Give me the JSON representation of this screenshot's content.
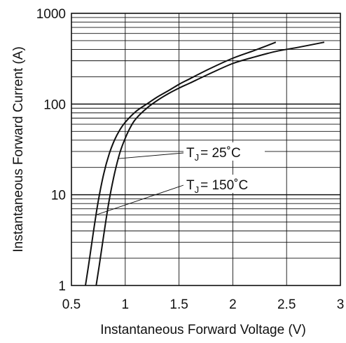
{
  "chart_data": {
    "type": "line",
    "title": "",
    "xlabel": "Instantaneous Forward Voltage (V)",
    "ylabel": "Instantaneous Forward Current (A)",
    "xscale": "linear",
    "yscale": "log",
    "xlim": [
      0.5,
      3
    ],
    "ylim": [
      1,
      1000
    ],
    "xticks": [
      "0.5",
      "1",
      "1.5",
      "2",
      "2.5",
      "3"
    ],
    "yticks": [
      "1",
      "10",
      "100",
      "1000"
    ],
    "grid": true,
    "legend": "annotations",
    "series": [
      {
        "name": "TJ = 25°C",
        "label_main": "T",
        "label_sub": "J",
        "label_rest": "= 25˚C",
        "x": [
          0.73,
          0.76,
          0.8,
          0.85,
          0.9,
          0.95,
          1.0,
          1.05,
          1.1,
          1.2,
          1.3,
          1.4,
          1.5,
          1.6,
          1.8,
          2.0,
          2.2,
          2.4,
          2.6,
          2.85
        ],
        "y": [
          1,
          1.7,
          3.6,
          8.6,
          17,
          29,
          42,
          56,
          69,
          90,
          110,
          130,
          150,
          170,
          220,
          280,
          330,
          380,
          420,
          480
        ]
      },
      {
        "name": "TJ = 150°C",
        "label_main": "T",
        "label_sub": "J",
        "label_rest": "= 150˚C",
        "x": [
          0.63,
          0.66,
          0.7,
          0.75,
          0.8,
          0.85,
          0.9,
          0.95,
          1.0,
          1.1,
          1.2,
          1.3,
          1.4,
          1.5,
          1.6,
          1.8,
          2.0,
          2.2,
          2.4
        ],
        "y": [
          1,
          1.7,
          3.6,
          8.6,
          17,
          28,
          40,
          52,
          63,
          83,
          100,
          120,
          140,
          165,
          190,
          250,
          320,
          390,
          480
        ]
      }
    ],
    "line_color": "#111111"
  }
}
